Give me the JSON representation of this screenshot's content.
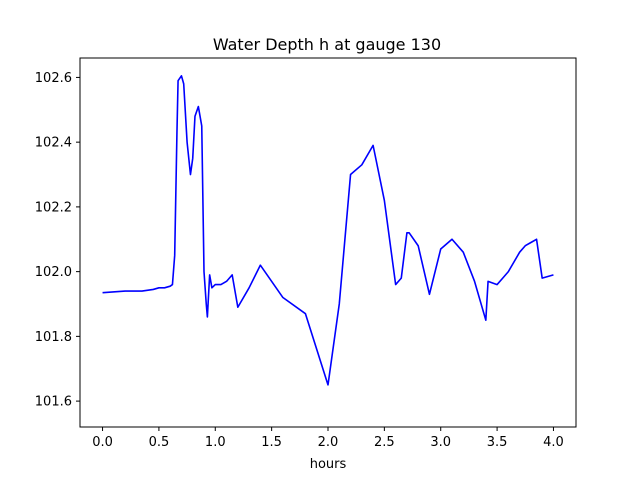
{
  "chart_data": {
    "type": "line",
    "title": "Water Depth h at gauge 130",
    "xlabel": "hours",
    "ylabel": "",
    "xlim": [
      -0.2,
      4.2
    ],
    "ylim": [
      101.52,
      102.66
    ],
    "xticks": [
      0.0,
      0.5,
      1.0,
      1.5,
      2.0,
      2.5,
      3.0,
      3.5,
      4.0
    ],
    "xtick_labels": [
      "0.0",
      "0.5",
      "1.0",
      "1.5",
      "2.0",
      "2.5",
      "3.0",
      "3.5",
      "4.0"
    ],
    "yticks": [
      101.6,
      101.8,
      102.0,
      102.2,
      102.4,
      102.6
    ],
    "ytick_labels": [
      "101.6",
      "101.8",
      "102.0",
      "102.2",
      "102.4",
      "102.6"
    ],
    "grid": false,
    "series": [
      {
        "color": "#0000ff",
        "x": [
          0.0,
          0.2,
          0.35,
          0.45,
          0.5,
          0.55,
          0.6,
          0.62,
          0.64,
          0.66,
          0.67,
          0.7,
          0.72,
          0.75,
          0.78,
          0.8,
          0.82,
          0.85,
          0.88,
          0.9,
          0.92,
          0.93,
          0.95,
          0.97,
          1.0,
          1.05,
          1.1,
          1.15,
          1.2,
          1.3,
          1.4,
          1.6,
          1.8,
          2.0,
          2.1,
          2.2,
          2.3,
          2.4,
          2.5,
          2.6,
          2.65,
          2.7,
          2.72,
          2.8,
          2.9,
          3.0,
          3.1,
          3.2,
          3.3,
          3.4,
          3.42,
          3.5,
          3.55,
          3.6,
          3.7,
          3.75,
          3.8,
          3.85,
          3.9,
          4.0
        ],
        "y": [
          101.935,
          101.94,
          101.94,
          101.945,
          101.95,
          101.95,
          101.955,
          101.96,
          102.05,
          102.43,
          102.59,
          102.605,
          102.58,
          102.4,
          102.3,
          102.35,
          102.48,
          102.51,
          102.45,
          102.0,
          101.9,
          101.86,
          101.99,
          101.95,
          101.96,
          101.96,
          101.97,
          101.99,
          101.89,
          101.95,
          102.02,
          101.92,
          101.87,
          101.65,
          101.9,
          102.3,
          102.33,
          102.39,
          102.22,
          101.96,
          101.98,
          102.12,
          102.12,
          102.08,
          101.93,
          102.07,
          102.1,
          102.06,
          101.97,
          101.85,
          101.97,
          101.96,
          101.98,
          102.0,
          102.06,
          102.08,
          102.09,
          102.1,
          101.98,
          101.99
        ]
      }
    ]
  }
}
